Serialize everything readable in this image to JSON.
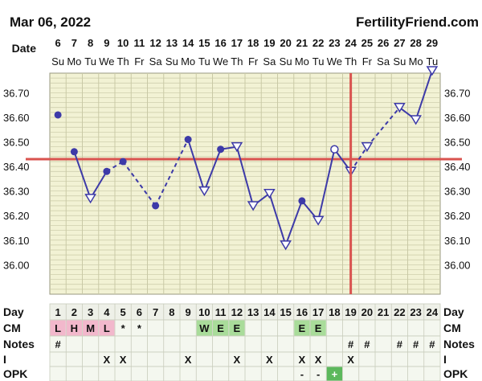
{
  "header": {
    "start_date": "Mar 06, 2022",
    "site": "FertilityFriend.com"
  },
  "row_labels": {
    "date": "Date",
    "day": "Day",
    "cm": "CM",
    "notes": "Notes",
    "i": "I",
    "opk": "OPK"
  },
  "colors": {
    "background": "#ffffff",
    "grid_bg": "#f2f2d4",
    "grid_line": "#c9c9a6",
    "line": "#3d3aa8",
    "coverline": "#d9534f",
    "ovulation_line": "#d9534f",
    "cm_pink": "#f2b8cc",
    "cm_green": "#a9dc9a",
    "opk_green": "#5cb85c",
    "bottom_bg": "#f4f7ef"
  },
  "chart_data": {
    "type": "line",
    "title": "",
    "xlabel": "",
    "ylabel": "",
    "dates": [
      "6",
      "7",
      "8",
      "9",
      "10",
      "11",
      "12",
      "13",
      "14",
      "15",
      "16",
      "17",
      "18",
      "19",
      "20",
      "21",
      "22",
      "23",
      "24",
      "25",
      "26",
      "27",
      "28",
      "29"
    ],
    "weekdays": [
      "Su",
      "Mo",
      "Tu",
      "We",
      "Th",
      "Fr",
      "Sa",
      "Su",
      "Mo",
      "Tu",
      "We",
      "Th",
      "Fr",
      "Sa",
      "Su",
      "Mo",
      "Tu",
      "We",
      "Th",
      "Fr",
      "Sa",
      "Su",
      "Mo",
      "Tu"
    ],
    "cycle_days": [
      1,
      2,
      3,
      4,
      5,
      6,
      7,
      8,
      9,
      10,
      11,
      12,
      13,
      14,
      15,
      16,
      17,
      18,
      19,
      20,
      21,
      22,
      23,
      24
    ],
    "y_ticks": [
      "36.00",
      "36.10",
      "36.20",
      "36.30",
      "36.40",
      "36.50",
      "36.60",
      "36.70"
    ],
    "ylim": [
      35.88,
      36.78
    ],
    "temperatures": [
      36.61,
      36.46,
      36.27,
      36.38,
      36.42,
      null,
      36.24,
      null,
      36.51,
      36.3,
      36.47,
      36.48,
      36.24,
      36.29,
      36.08,
      36.26,
      36.18,
      36.47,
      36.38,
      36.48,
      null,
      36.64,
      36.59,
      36.79
    ],
    "markers": [
      "dot",
      "dot",
      "tri",
      "dot",
      "dot",
      null,
      "dot",
      null,
      "dot",
      "tri",
      "dot",
      "tri",
      "tri",
      "tri",
      "tri",
      "dot",
      "tri",
      "circle",
      "tri",
      "tri",
      null,
      "tri",
      "tri",
      "tri"
    ],
    "solid_segments": [
      [
        2,
        3
      ],
      [
        3,
        4
      ],
      [
        9,
        10
      ],
      [
        10,
        11
      ],
      [
        11,
        12
      ],
      [
        12,
        13
      ],
      [
        13,
        14
      ],
      [
        14,
        15
      ],
      [
        15,
        16
      ],
      [
        16,
        17
      ],
      [
        17,
        18
      ],
      [
        18,
        19
      ],
      [
        22,
        23
      ],
      [
        23,
        24
      ]
    ],
    "dashed_segments": [
      [
        4,
        5
      ],
      [
        5,
        7
      ],
      [
        7,
        9
      ],
      [
        19,
        20
      ],
      [
        20,
        22
      ]
    ],
    "coverline": 36.43,
    "ovulation_day": 19,
    "cm": [
      "L",
      "H",
      "M",
      "L",
      "*",
      "*",
      "",
      "",
      "",
      "W",
      "E",
      "E",
      "",
      "",
      "",
      "E",
      "E",
      "",
      "",
      "",
      "",
      "",
      "",
      ""
    ],
    "notes": [
      "#",
      "",
      "",
      "",
      "",
      "",
      "",
      "",
      "",
      "",
      "",
      "",
      "",
      "",
      "",
      "",
      "",
      "",
      "#",
      "#",
      "",
      "#",
      "#",
      "#"
    ],
    "intercourse": [
      "",
      "",
      "",
      "X",
      "X",
      "",
      "",
      "",
      "X",
      "",
      "",
      "X",
      "",
      "X",
      "",
      "X",
      "X",
      "",
      "X",
      "",
      "",
      "",
      "",
      ""
    ],
    "opk": [
      "",
      "",
      "",
      "",
      "",
      "",
      "",
      "",
      "",
      "",
      "",
      "",
      "",
      "",
      "",
      "-",
      "-",
      "+",
      "",
      "",
      "",
      "",
      "",
      ""
    ]
  }
}
